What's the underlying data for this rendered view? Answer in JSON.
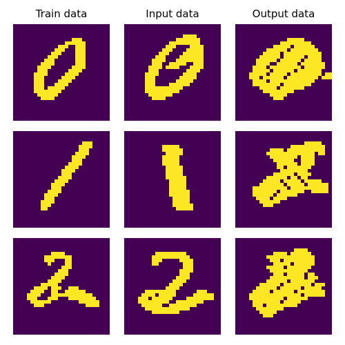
{
  "colors": {
    "background": "#440154",
    "foreground": "#fde725"
  },
  "chart_data": {
    "type": "heatmap",
    "grid_size": 28,
    "column_titles": [
      "Train data",
      "Input data",
      "Output data"
    ],
    "value_scale": [
      0,
      1
    ],
    "panels": [
      {
        "row": 0,
        "col": 0,
        "column": "Train data",
        "digit": "0",
        "on_cells": "r4:17-19;r5:15-20;r6:13-15,18-20;r7:12-14,18-20;r8:11-13,18-20;r9:10-12,18-20;r10:9-11,18-20;r11:8-11,18-20;r12:7-10,17-20;r13:7-9,16-19;r14:6-9,15-18;r15:6-8,14-17;r16:6-8,13-16;r17:6-8,12-15;r18:6-8,10-14;r19:6-13;r20:7-12;r21:8-11"
      },
      {
        "row": 0,
        "col": 1,
        "column": "Input data",
        "digit": "0",
        "on_cells": "r3:17-20;r4:15-21;r5:13-21;r6:12-14,19-22;r7:11-13,18-22;r8:10-12,17-22;r9:9-11,16-22;r10:8-11,15-22;r11:8-10,13-17,20-22;r12:7-10,12-15,19-22;r13:7-9,18-21;r14:6-9,17-20;r15:6-8,16-20;r16:6-8,15-19;r17:6-8,13-18;r18:6-16;r19:6-15;r20:7-13;r21:8-11"
      },
      {
        "row": 0,
        "col": 2,
        "column": "Output data",
        "digit": "0",
        "on_cells": "r4:15-19;r5:13-21;r6:11-15,17-22;r7:9-14,16-23;r8:8-12,14-24;r9:7-12,14-19,21-24;r10:6-11,13-18,20-24;r11:6-9,12-17,19-25;r12:5-8,10-18,20-25;r13:5-9,11-16,18-24;r14:4-8,10-14,16-24,26-28;r15:4-6,8-13,15-23,25-28;r16:5-8,10-22;r17:5-12,14-21;r18:7-11,13-19;r19:8-16;r20:10-14;r21:11-13"
      },
      {
        "row": 1,
        "col": 0,
        "column": "Train data",
        "digit": "1",
        "on_cells": "r3:20-22;r4:19-22;r5:19-21;r6:18-21;r7:17-20;r8:17-19;r9:16-19;r10:15-18;r11:14-17;r12:14-16;r13:13-16;r14:12-15;r15:11-14;r16:11-13;r17:10-13;r18:9-12;r19:9-11;r20:8-11;r21:8-10;r22:8-9"
      },
      {
        "row": 1,
        "col": 1,
        "column": "Input data",
        "digit": "1",
        "on_cells": "r4:11-15;r5:11-16;r6:12-16;r7:11-15;r8:11-15;r9:11-15;r10:12-16;r11:12-16;r12:12-16;r13:12-17;r14:13-17;r15:13-17;r16:13-17;r17:13-18;r18:13-18;r19:14-18;r20:14-18;r21:14-19;r22:15-19"
      },
      {
        "row": 1,
        "col": 2,
        "column": "Output data",
        "digit": "1",
        "on_cells": "r3:20-24;r4:16-25;r5:10-13,15-25;r6:9-22,24-25;r7:10-17,19-22;r8:11-16,19-22;r9:12-17,19-22;r10:12-13,15-21;r11:13-20;r12:11-16,18-21;r13:9-14,16-17,19-20;r14:8-12,14-18,20-24;r15:7-13,15-19,21-26;r16:5-14,16-26;r17:5-11,13-19,22-26;r18:5-10,12-17;r19:6-9,11-14;r20:7-12;r21:8-10"
      },
      {
        "row": 2,
        "col": 0,
        "column": "Train data",
        "digit": "2",
        "on_cells": "r4:11-14;r5:9-16;r6:9-11,15-16;r7:10,15-16;r8:14-16;r9:13-15;r10:12-15;r11:11-14;r12:10-13;r13:8-12;r14:6-9,11-13,16-18;r15:5-8,11-12,15-20;r16:4-7,11-22;r17:4-6,10-12,16-23;r18:5-10,19-24;r19:6-8,21-24"
      },
      {
        "row": 2,
        "col": 1,
        "column": "Input data",
        "digit": "2",
        "on_cells": "r4:9-17;r5:8-18;r6:8-10,16-19;r7:8-9,17-19;r8:17-19;r9:16-19;r10:16-18;r11:15-18;r12:14-17;r13:13-16;r14:12-15;r15:6-10,11-14,21-23;r16:5-8,10-14,20-25;r17:4-6,8-13,18-25;r18:4-12,15-22;r19:5-10,13-20;r20:6-18;r21:8-15"
      },
      {
        "row": 2,
        "col": 2,
        "column": "Output data",
        "digit": "2",
        "on_cells": "r3:17-20;r4:11-14,16-21;r5:9-22;r6:10-12,14-22;r7:11-15,17-22;r8:9-13,15-21;r9:10-20;r10:11-13,15-19,21-22;r11:10-19,21-23;r12:9-14,16-22;r13:7-12,14-21,23-25;r14:6-11,13-18,20-24;r15:5-9,11-16,18-25;r16:4-18,20-25;r17:4-13,15-20;r18:5-12,14-18;r19:5-7,9-17;r20:6-13;r21:7-11;r22:8-10"
      }
    ]
  }
}
